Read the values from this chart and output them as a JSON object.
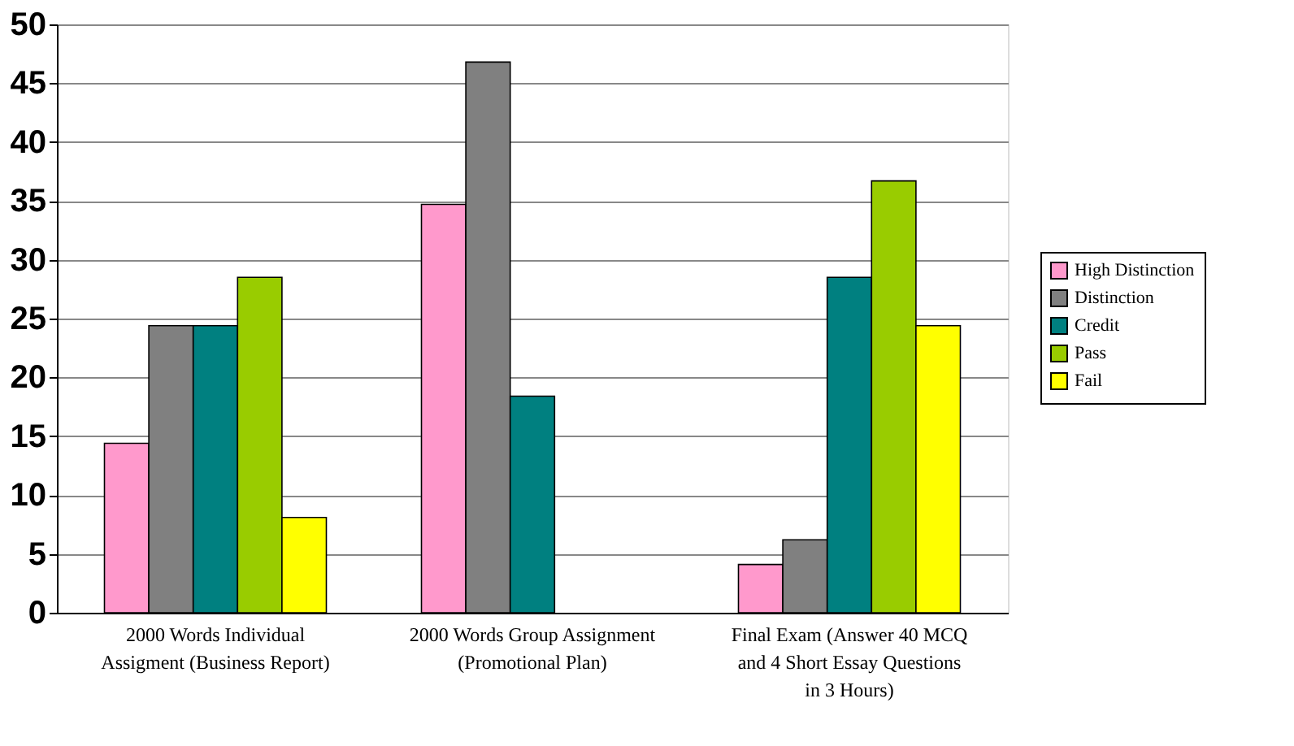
{
  "chart_data": {
    "type": "bar",
    "categories": [
      "2000 Words Individual Assigment (Business Report)",
      "2000 Words Group Assignment (Promotional Plan)",
      "Final Exam (Answer 40 MCQ and 4 Short Essay Questions in 3 Hours)"
    ],
    "series": [
      {
        "name": "High Distinction",
        "color": "#ff99cc",
        "values": [
          14.4,
          34.7,
          4.1
        ]
      },
      {
        "name": "Distinction",
        "color": "#808080",
        "values": [
          24.4,
          46.8,
          6.2
        ]
      },
      {
        "name": "Credit",
        "color": "#008080",
        "values": [
          24.4,
          18.4,
          28.5
        ]
      },
      {
        "name": "Pass",
        "color": "#99cc00",
        "values": [
          28.5,
          null,
          36.7
        ]
      },
      {
        "name": "Fail",
        "color": "#ffff00",
        "values": [
          8.1,
          null,
          24.4
        ]
      }
    ],
    "ylim": [
      0,
      50
    ],
    "yticks": [
      0,
      5,
      10,
      15,
      20,
      25,
      30,
      35,
      40,
      45,
      50
    ],
    "grid": "y",
    "legend": "right"
  }
}
